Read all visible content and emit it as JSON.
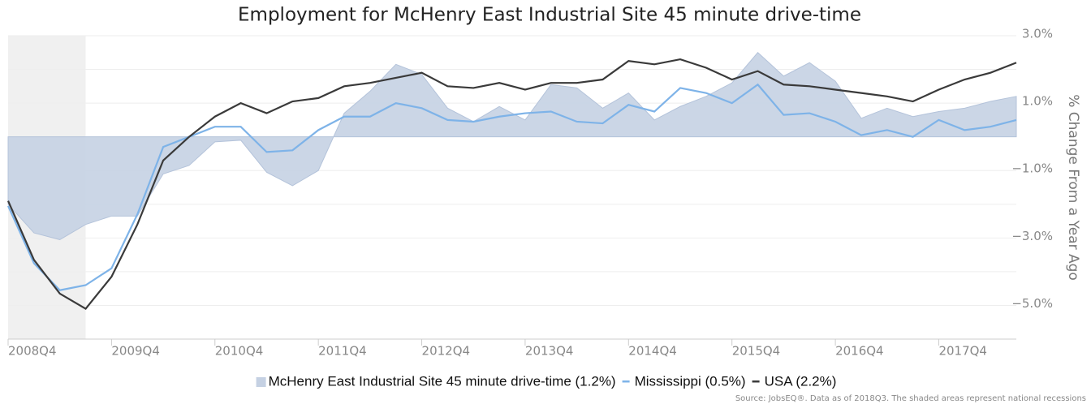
{
  "chart_data": {
    "type": "area_line",
    "title": "Employment for McHenry East Industrial Site 45 minute drive-time",
    "y_label": "% Change From a Year Ago",
    "source": "Source: JobsEQ®. Data as of 2018Q3. The shaded areas represent national recessions",
    "categories": [
      "2008Q4",
      null,
      null,
      null,
      "2009Q4",
      null,
      null,
      null,
      "2010Q4",
      null,
      null,
      null,
      "2011Q4",
      null,
      null,
      null,
      "2012Q4",
      null,
      null,
      null,
      "2013Q4",
      null,
      null,
      null,
      "2014Q4",
      null,
      null,
      null,
      "2015Q4",
      null,
      null,
      null,
      "2016Q4",
      null,
      null,
      null,
      "2017Q4",
      null,
      null,
      null
    ],
    "recession": [
      0,
      3
    ],
    "ylim": [
      -6,
      3
    ],
    "yticks": [
      {
        "value": 3,
        "label": "3.0%"
      },
      {
        "value": 1,
        "label": "1.0%"
      },
      {
        "value": -1,
        "label": "−1.0%"
      },
      {
        "value": -3,
        "label": "−3.0%"
      },
      {
        "value": -5,
        "label": "−5.0%"
      }
    ],
    "yminorticks": [
      2,
      0,
      -2,
      -4,
      -6
    ],
    "grid": true,
    "series": [
      {
        "name": "McHenry East Industrial Site 45 minute drive-time (1.2%)",
        "kind": "area",
        "color": "#c5d1e3",
        "values": [
          -2.0,
          -2.85,
          -3.05,
          -2.6,
          -2.35,
          -2.35,
          -1.1,
          -0.85,
          -0.15,
          -0.1,
          -1.05,
          -1.45,
          -1.0,
          0.7,
          1.35,
          2.15,
          1.85,
          0.85,
          0.45,
          0.9,
          0.5,
          1.55,
          1.45,
          0.85,
          1.3,
          0.5,
          0.9,
          1.2,
          1.6,
          2.5,
          1.8,
          2.2,
          1.65,
          0.55,
          0.85,
          0.6,
          0.75,
          0.85,
          1.05,
          1.2
        ]
      },
      {
        "name": "Mississippi (0.5%)",
        "kind": "line",
        "color": "#7eb3e8",
        "values": [
          -2.05,
          -3.75,
          -4.55,
          -4.4,
          -3.9,
          -2.3,
          -0.3,
          0,
          0.3,
          0.3,
          -0.45,
          -0.4,
          0.2,
          0.6,
          0.6,
          1.0,
          0.85,
          0.5,
          0.45,
          0.6,
          0.7,
          0.75,
          0.45,
          0.4,
          0.95,
          0.75,
          1.45,
          1.3,
          1.0,
          1.55,
          0.65,
          0.7,
          0.45,
          0.05,
          0.2,
          0,
          0.5,
          0.2,
          0.3,
          0.5
        ]
      },
      {
        "name": "USA (2.2%)",
        "kind": "line",
        "color": "#3a3a3a",
        "values": [
          -1.9,
          -3.65,
          -4.65,
          -5.1,
          -4.15,
          -2.6,
          -0.7,
          0,
          0.6,
          1.0,
          0.7,
          1.05,
          1.15,
          1.5,
          1.6,
          1.75,
          1.9,
          1.5,
          1.45,
          1.6,
          1.4,
          1.6,
          1.6,
          1.7,
          2.25,
          2.15,
          2.3,
          2.05,
          1.7,
          1.95,
          1.55,
          1.5,
          1.4,
          1.3,
          1.2,
          1.05,
          1.4,
          1.7,
          1.9,
          2.2
        ]
      }
    ]
  }
}
